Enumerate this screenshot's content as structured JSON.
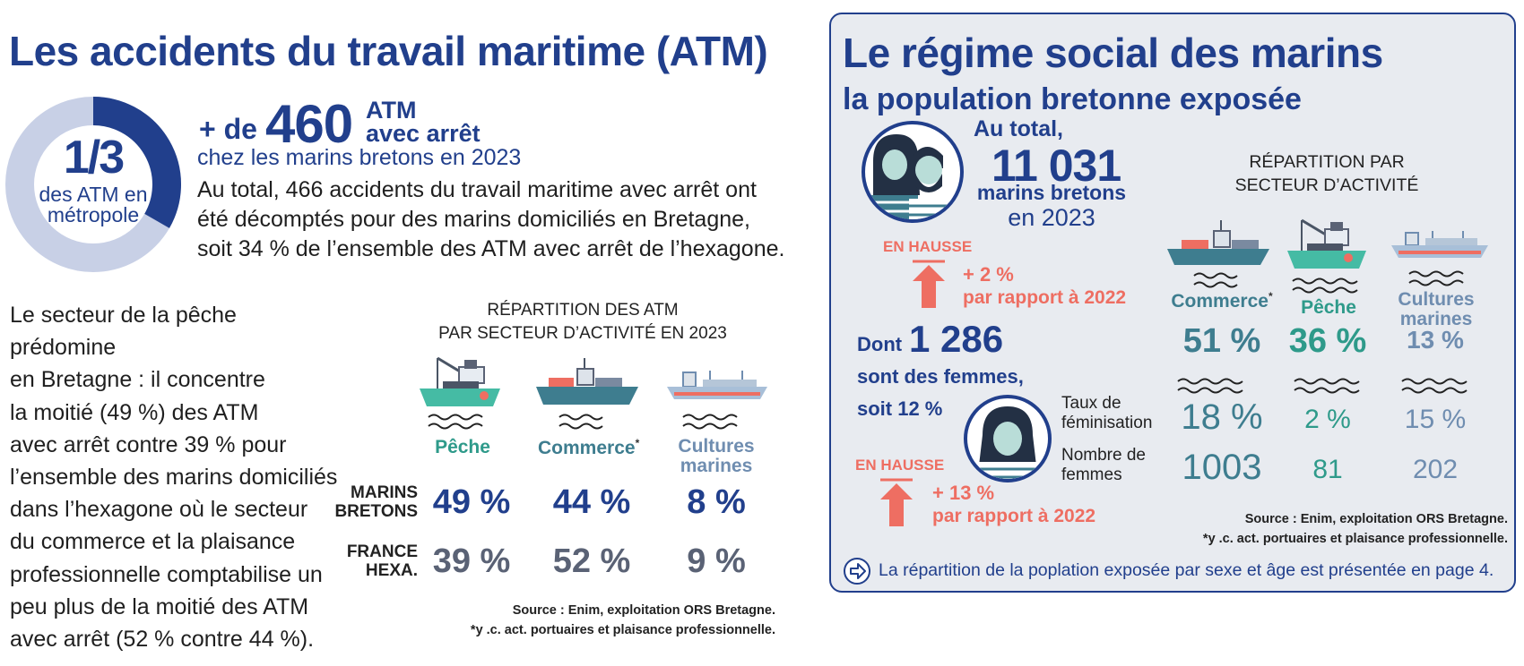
{
  "left": {
    "title": "Les accidents du travail maritime (ATM)",
    "donut": {
      "fraction_label": "1/3",
      "caption_line1": "des ATM en",
      "caption_line2": "métropole",
      "share": 0.333
    },
    "headline": {
      "prefix": "+ de",
      "number": "460",
      "unit_line1": "ATM",
      "unit_line2": "avec arrêt",
      "subline": "chez les marins bretons en 2023"
    },
    "intro_lines": [
      "Au total, 466 accidents du travail maritime avec arrêt ont",
      "été décomptés pour des marins domiciliés en Bretagne,",
      "soit 34 % de l’ensemble des ATM avec arrêt de l’hexagone."
    ],
    "paragraph_lines": [
      "Le secteur de la pêche prédomine",
      "en Bretagne : il concentre",
      "la moitié (49 %) des ATM",
      "avec arrêt contre  39 % pour",
      "l’ensemble des marins domiciliés",
      "dans l’hexagone où le secteur",
      "du commerce et la plaisance",
      "professionnelle comptabilise un",
      "peu plus de la moitié des ATM",
      "avec arrêt (52 % contre 44 %)."
    ],
    "table": {
      "title_line1": "RÉPARTITION DES ATM",
      "title_line2": "PAR SECTEUR D’ACTIVITÉ EN 2023",
      "sectors": [
        {
          "label_line1": "Pêche",
          "label_line2": "",
          "asterisk": ""
        },
        {
          "label_line1": "Commerce",
          "label_line2": "",
          "asterisk": "*"
        },
        {
          "label_line1": "Cultures",
          "label_line2": "marines",
          "asterisk": ""
        }
      ],
      "rows": [
        {
          "label_line1": "MARINS",
          "label_line2": "BRETONS",
          "values": [
            "49 %",
            "44 %",
            "8 %"
          ]
        },
        {
          "label_line1": "FRANCE",
          "label_line2": "HEXA.",
          "values": [
            "39 %",
            "52 %",
            "9 %"
          ]
        }
      ],
      "source": "Source : Enim, exploitation ORS Bretagne.",
      "footnote": "*y .c. act. portuaires et plaisance professionnelle."
    }
  },
  "right": {
    "title": "Le régime social des marins",
    "subtitle": "la population bretonne exposée",
    "total": {
      "prefix": "Au total,",
      "number": "11 031",
      "label": "marins bretons",
      "year": "en 2023"
    },
    "trend1": {
      "tag": "EN HAUSSE",
      "value": "+ 2 %",
      "ref": "par rapport à 2022"
    },
    "women": {
      "prefix": "Dont",
      "number": "1 286",
      "line2": "sont des femmes,",
      "line3": "soit 12 %"
    },
    "trend2": {
      "tag": "EN HAUSSE",
      "value": "+ 13 %",
      "ref": "par rapport à 2022"
    },
    "sector_title_line1": "RÉPARTITION PAR",
    "sector_title_line2": "SECTEUR D’ACTIVITÉ",
    "sectors": [
      {
        "label_line1": "Commerce",
        "label_line2": "",
        "asterisk": "*",
        "share": "51 %",
        "fem_rate": "18 %",
        "women_count": "1003"
      },
      {
        "label_line1": "Pêche",
        "label_line2": "",
        "asterisk": "",
        "share": "36 %",
        "fem_rate": "2 %",
        "women_count": "81"
      },
      {
        "label_line1": "Cultures",
        "label_line2": "marines",
        "asterisk": "",
        "share": "13 %",
        "fem_rate": "15 %",
        "women_count": "202"
      }
    ],
    "row_labels": {
      "fem_line1": "Taux de",
      "fem_line2": "féminisation",
      "count_line1": "Nombre de",
      "count_line2": "femmes"
    },
    "source": "Source : Enim, exploitation ORS Bretagne.",
    "footnote": "*y .c. act. portuaires et plaisance professionnelle.",
    "note": "La répartition de la poplation exposée par sexe et âge est présentée en page 4."
  },
  "colors": {
    "navy": "#213f8c",
    "teal": "#2e9a8a",
    "greyblue": "#6f8db0",
    "coral": "#ee6e62",
    "panel": "#e8ebf0"
  }
}
